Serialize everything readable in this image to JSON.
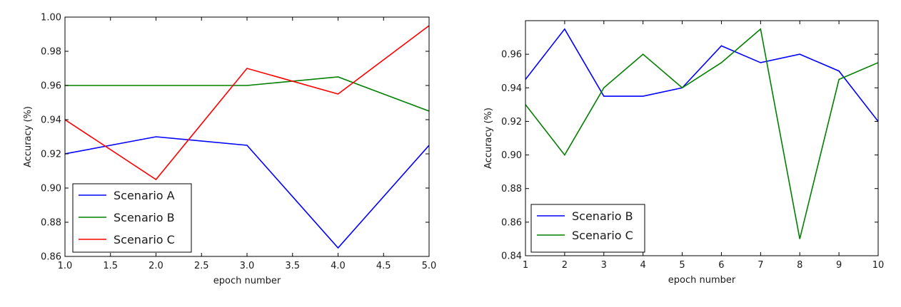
{
  "chart_data": [
    {
      "type": "line",
      "xlabel": "epoch number",
      "ylabel": "Accuracy (%)",
      "xlim": [
        1.0,
        5.0
      ],
      "ylim": [
        0.86,
        1.0
      ],
      "xticks": [
        1.0,
        1.5,
        2.0,
        2.5,
        3.0,
        3.5,
        4.0,
        4.5,
        5.0
      ],
      "yticks": [
        0.86,
        0.88,
        0.9,
        0.92,
        0.94,
        0.96,
        0.98,
        1.0
      ],
      "xtick_labels": [
        "1.0",
        "1.5",
        "2.0",
        "2.5",
        "3.0",
        "3.5",
        "4.0",
        "4.5",
        "5.0"
      ],
      "ytick_labels": [
        "0.86",
        "0.88",
        "0.90",
        "0.92",
        "0.94",
        "0.96",
        "0.98",
        "1.00"
      ],
      "legend": "lower-left",
      "x": [
        1,
        2,
        3,
        4,
        5
      ],
      "series": [
        {
          "name": "Scenario A",
          "color": "#0000ff",
          "values": [
            0.92,
            0.93,
            0.925,
            0.865,
            0.925
          ]
        },
        {
          "name": "Scenario B",
          "color": "#008000",
          "values": [
            0.96,
            0.96,
            0.96,
            0.965,
            0.945
          ]
        },
        {
          "name": "Scenario C",
          "color": "#ff0000",
          "values": [
            0.94,
            0.905,
            0.97,
            0.955,
            0.995
          ]
        }
      ]
    },
    {
      "type": "line",
      "xlabel": "epoch number",
      "ylabel": "Accuracy (%)",
      "xlim": [
        1,
        10
      ],
      "ylim": [
        0.84,
        0.98
      ],
      "xticks": [
        1,
        2,
        3,
        4,
        5,
        6,
        7,
        8,
        9,
        10
      ],
      "yticks": [
        0.84,
        0.86,
        0.88,
        0.9,
        0.92,
        0.94,
        0.96
      ],
      "xtick_labels": [
        "1",
        "2",
        "3",
        "4",
        "5",
        "6",
        "7",
        "8",
        "9",
        "10"
      ],
      "ytick_labels": [
        "0.84",
        "0.86",
        "0.88",
        "0.90",
        "0.92",
        "0.94",
        "0.96"
      ],
      "legend": "lower-left",
      "x": [
        1,
        2,
        3,
        4,
        5,
        6,
        7,
        8,
        9,
        10
      ],
      "series": [
        {
          "name": "Scenario B",
          "color": "#0000ff",
          "values": [
            0.945,
            0.975,
            0.935,
            0.935,
            0.94,
            0.965,
            0.955,
            0.96,
            0.95,
            0.92
          ]
        },
        {
          "name": "Scenario C",
          "color": "#008000",
          "values": [
            0.93,
            0.9,
            0.94,
            0.96,
            0.94,
            0.955,
            0.975,
            0.85,
            0.945,
            0.955
          ]
        }
      ]
    }
  ]
}
